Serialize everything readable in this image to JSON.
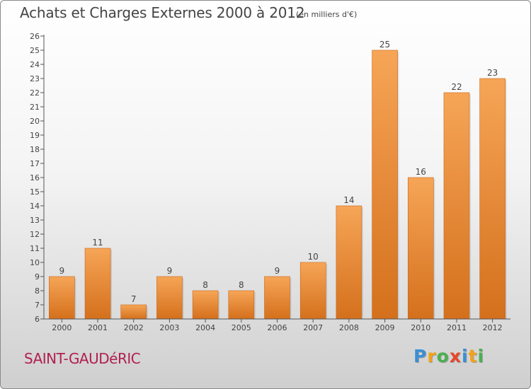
{
  "header": {
    "title": "Achats et Charges Externes 2000 à 2012",
    "subtitle": "(en milliers d'€)"
  },
  "footer": {
    "commune": "SAINT-GAUDéRIC"
  },
  "logo": {
    "text": "Proxiti",
    "letters": [
      {
        "char": "P",
        "color": "#3a8fd4"
      },
      {
        "char": "r",
        "color": "#f0a21b"
      },
      {
        "char": "o",
        "color": "#4caf50"
      },
      {
        "char": "x",
        "color": "#e8452c"
      },
      {
        "char": "i",
        "color": "#3a8fd4"
      },
      {
        "char": "t",
        "color": "#f0a21b"
      },
      {
        "char": "i",
        "color": "#4caf50"
      }
    ]
  },
  "colors": {
    "bar_top": "#f6a557",
    "bar_bottom": "#d4701c",
    "bar_edge": "#c9661b",
    "text": "#444444"
  },
  "chart_data": {
    "type": "bar",
    "title": "Achats et Charges Externes 2000 à 2012",
    "subtitle": "(en milliers d'€)",
    "categories": [
      "2000",
      "2001",
      "2002",
      "2003",
      "2004",
      "2005",
      "2006",
      "2007",
      "2008",
      "2009",
      "2010",
      "2011",
      "2012"
    ],
    "values": [
      9,
      11,
      7,
      9,
      8,
      8,
      9,
      10,
      14,
      25,
      16,
      22,
      23
    ],
    "xlabel": "",
    "ylabel": "",
    "ylim": [
      6,
      26
    ],
    "yticks": [
      6,
      7,
      8,
      9,
      10,
      11,
      12,
      13,
      14,
      15,
      16,
      17,
      18,
      19,
      20,
      21,
      22,
      23,
      24,
      25,
      26
    ],
    "grid": false,
    "data_labels": true
  }
}
